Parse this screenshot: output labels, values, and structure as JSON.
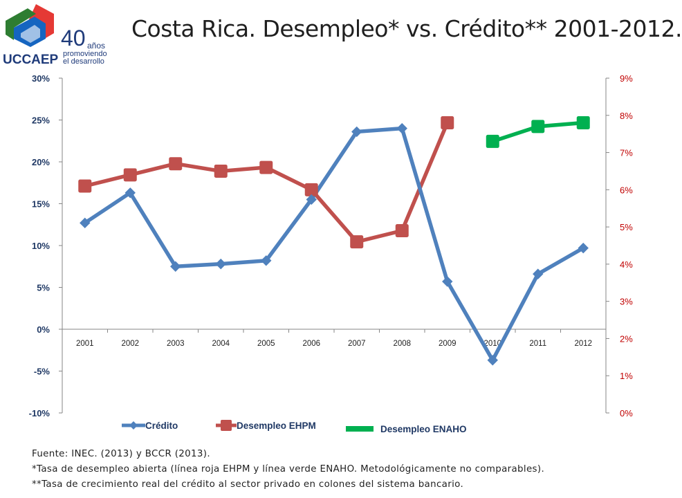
{
  "logo": {
    "brand": "UCCAEP",
    "years": "40",
    "years_word": "años",
    "line1": "promoviendo",
    "line2": "el desarrollo"
  },
  "title": "Costa Rica. Desempleo* vs. Crédito** 2001-2012.",
  "notes": [
    "Fuente: INEC. (2013) y BCCR (2013).",
    "*Tasa de desempleo abierta (línea roja EHPM y línea verde ENAHO. Metodológicamente no comparables).",
    "**Tasa de crecimiento real del crédito al sector privado en colones del sistema bancario."
  ],
  "colors": {
    "credito": "#4f81bd",
    "ehpm": "#c0504d",
    "enaho": "#00b050",
    "left_axis_text": "#1f3864",
    "right_axis_text": "#c00000"
  },
  "chart_data": {
    "type": "line",
    "categories": [
      "2001",
      "2002",
      "2003",
      "2004",
      "2005",
      "2006",
      "2007",
      "2008",
      "2009",
      "2010",
      "2011",
      "2012"
    ],
    "y_left": {
      "ylim": [
        -10,
        30
      ],
      "ticks": [
        "30%",
        "25%",
        "20%",
        "15%",
        "10%",
        "5%",
        "0%",
        "-5%",
        "-10%"
      ]
    },
    "y_right": {
      "ylim": [
        0,
        9
      ],
      "ticks": [
        "9%",
        "8%",
        "7%",
        "6%",
        "5%",
        "4%",
        "3%",
        "2%",
        "1%",
        "0%"
      ]
    },
    "series": [
      {
        "name": "Crédito",
        "axis": "left",
        "marker": "diamond",
        "values": [
          12.7,
          16.3,
          7.5,
          7.8,
          8.2,
          15.5,
          23.6,
          24.0,
          5.7,
          -3.7,
          6.6,
          9.7
        ]
      },
      {
        "name": "Desempleo EHPM",
        "axis": "right",
        "marker": "square",
        "values": [
          6.1,
          6.4,
          6.7,
          6.5,
          6.6,
          6.0,
          4.6,
          4.9,
          7.8,
          null,
          null,
          null
        ]
      },
      {
        "name": "Desempleo ENAHO",
        "axis": "right",
        "marker": "square",
        "values": [
          null,
          null,
          null,
          null,
          null,
          null,
          null,
          null,
          null,
          7.3,
          7.7,
          7.8
        ]
      }
    ],
    "legend": "bottom"
  }
}
